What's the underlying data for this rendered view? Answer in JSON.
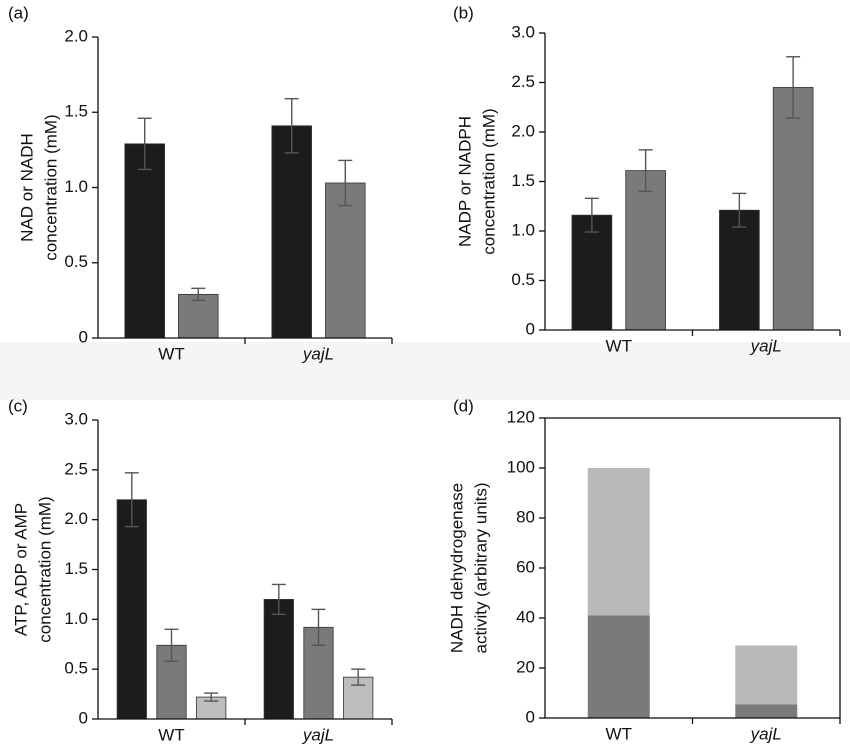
{
  "chart_data": [
    {
      "type": "bar",
      "panel_label": "(a)",
      "ylabel": [
        "NAD or NADH",
        "concentration (mM)"
      ],
      "categories": [
        "WT",
        "yajL"
      ],
      "category_font_style": [
        "normal",
        "italic"
      ],
      "series": [
        {
          "color": "#1c1c1c",
          "values": [
            1.29,
            1.41
          ],
          "errors": [
            0.17,
            0.18
          ]
        },
        {
          "color": "#7a7a7a",
          "values": [
            0.29,
            1.03
          ],
          "errors": [
            0.04,
            0.15
          ]
        }
      ],
      "ylim": [
        0,
        2
      ],
      "yticks": [
        0,
        0.5,
        {
          "value": 1,
          "label": "1.0"
        },
        1.5,
        {
          "value": 2,
          "label": "2.0"
        }
      ],
      "frame": false
    },
    {
      "type": "bar",
      "panel_label": "(b)",
      "ylabel": [
        "NADP or NADPH",
        "concentration (mM)"
      ],
      "categories": [
        "WT",
        "yajL"
      ],
      "category_font_style": [
        "normal",
        "italic"
      ],
      "series": [
        {
          "color": "#1c1c1c",
          "values": [
            1.16,
            1.21
          ],
          "errors": [
            0.17,
            0.17
          ]
        },
        {
          "color": "#7a7a7a",
          "values": [
            1.61,
            2.45
          ],
          "errors": [
            0.21,
            0.31
          ]
        }
      ],
      "ylim": [
        0,
        3
      ],
      "yticks": [
        0,
        0.5,
        {
          "value": 1,
          "label": "1.0"
        },
        1.5,
        {
          "value": 2,
          "label": "2.0"
        },
        2.5,
        {
          "value": 3,
          "label": "3.0"
        }
      ],
      "frame": false
    },
    {
      "type": "bar",
      "panel_label": "(c)",
      "ylabel": [
        "ATP, ADP or AMP",
        "concentration (mM)"
      ],
      "categories": [
        "WT",
        "yajL"
      ],
      "category_font_style": [
        "normal",
        "italic"
      ],
      "series": [
        {
          "color": "#1c1c1c",
          "values": [
            2.2,
            1.2
          ],
          "errors": [
            0.27,
            0.15
          ]
        },
        {
          "color": "#7a7a7a",
          "values": [
            0.74,
            0.92
          ],
          "errors": [
            0.16,
            0.18
          ]
        },
        {
          "color": "#bdbdbd",
          "values": [
            0.22,
            0.42
          ],
          "errors": [
            0.04,
            0.08
          ]
        }
      ],
      "ylim": [
        0,
        3
      ],
      "yticks": [
        0,
        0.5,
        {
          "value": 1,
          "label": "1.0"
        },
        1.5,
        {
          "value": 2,
          "label": "2.0"
        },
        2.5,
        {
          "value": 3,
          "label": "3.0"
        }
      ],
      "frame": false
    },
    {
      "type": "stacked_bar",
      "panel_label": "(d)",
      "ylabel": [
        "NADH dehydrogenase",
        "activity (arbitrary units)"
      ],
      "categories": [
        "WT",
        "yajL"
      ],
      "category_font_style": [
        "normal",
        "italic"
      ],
      "series": [
        {
          "color": "#7a7a7a",
          "values": [
            41,
            5.5
          ]
        },
        {
          "color": "#b9b9b9",
          "values": [
            59,
            23.5
          ]
        }
      ],
      "ylim": [
        0,
        120
      ],
      "yticks": [
        0,
        20,
        40,
        60,
        80,
        100,
        120
      ],
      "frame": true
    }
  ]
}
